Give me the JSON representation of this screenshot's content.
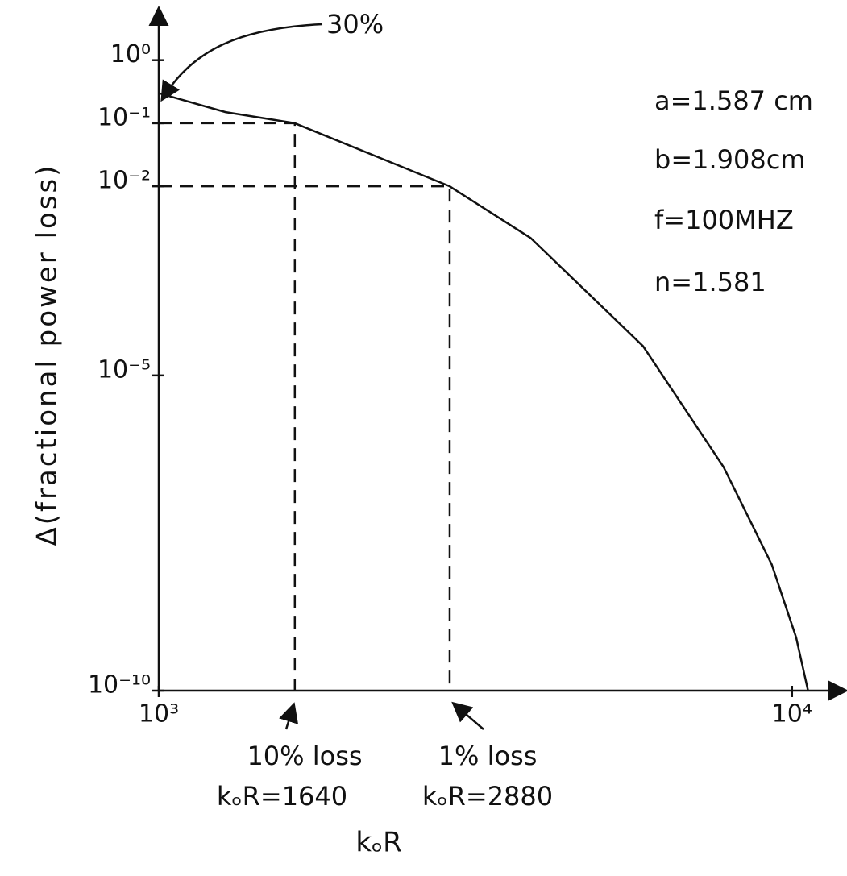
{
  "chart_data": {
    "type": "line",
    "x_label": "kₒR",
    "y_label": "Δ(fractional power loss)",
    "log_x": true,
    "log_y": true,
    "xlim": [
      1000,
      12000
    ],
    "ylim": [
      1e-10,
      5
    ],
    "xticks": [
      {
        "value": 1000,
        "label": "10³"
      },
      {
        "value": 10000,
        "label": "10⁴"
      }
    ],
    "yticks": [
      {
        "value": 1,
        "label": "10⁰"
      },
      {
        "value": 0.1,
        "label": "10⁻¹"
      },
      {
        "value": 0.01,
        "label": "10⁻²"
      },
      {
        "value": 1e-05,
        "label": "10⁻⁵"
      },
      {
        "value": 1e-10,
        "label": "10⁻¹⁰"
      }
    ],
    "color": "#111111",
    "x": [
      1000,
      1275,
      1640,
      2880,
      3870,
      5820,
      7800,
      9290,
      10150,
      10600
    ],
    "values": [
      0.3,
      0.15,
      0.1,
      0.01,
      0.0015,
      2.9e-05,
      3.5e-07,
      1e-08,
      7e-10,
      1e-10
    ],
    "annotations": [
      "30%",
      "10% loss",
      "kₒR=1640",
      "1% loss",
      "kₒR=2880"
    ],
    "markers": [
      {
        "x": 1640,
        "y": 0.1
      },
      {
        "x": 2880,
        "y": 0.01
      }
    ],
    "parameters": [
      "a=1.587 cm",
      "b=1.908cm",
      "f=100MHZ",
      "n=1.581"
    ]
  }
}
